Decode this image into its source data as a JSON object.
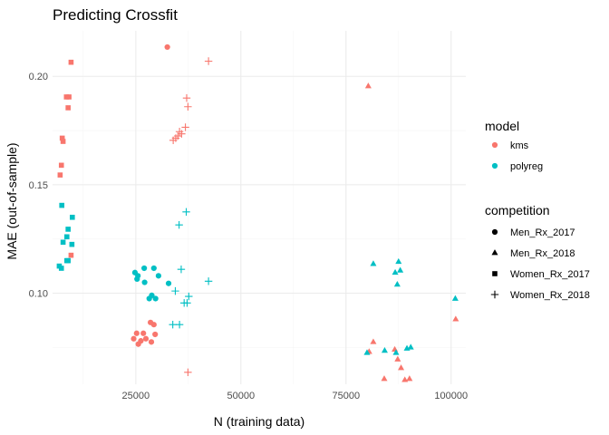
{
  "chart_data": {
    "type": "scatter",
    "title": "Predicting Crossfit",
    "xlabel": "N (training data)",
    "ylabel": "MAE (out-of-sample)",
    "xlim": [
      5200,
      103500
    ],
    "ylim": [
      0.058,
      0.221
    ],
    "x_ticks": [
      25000,
      50000,
      75000,
      100000
    ],
    "x_tick_labels": [
      "25000",
      "50000",
      "75000",
      "100000"
    ],
    "y_ticks": [
      0.1,
      0.15,
      0.2
    ],
    "y_tick_labels": [
      "0.10",
      "0.15",
      "0.20"
    ],
    "grid": true,
    "legend_position": "right",
    "color_legend": {
      "title": "model",
      "entries": [
        {
          "label": "kms",
          "color": "#f8766d"
        },
        {
          "label": "polyreg",
          "color": "#00bfc4"
        }
      ]
    },
    "shape_legend": {
      "title": "competition",
      "entries": [
        {
          "label": "Men_Rx_2017",
          "shape": "circle"
        },
        {
          "label": "Men_Rx_2018",
          "shape": "triangle"
        },
        {
          "label": "Women_Rx_2017",
          "shape": "square"
        },
        {
          "label": "Women_Rx_2018",
          "shape": "plus"
        }
      ]
    },
    "series": [
      {
        "model": "kms",
        "competition": "Men_Rx_2017",
        "points": [
          [
            32500,
            0.2135
          ],
          [
            25200,
            0.0815
          ],
          [
            24500,
            0.079
          ],
          [
            26800,
            0.0815
          ],
          [
            28500,
            0.0865
          ],
          [
            29300,
            0.0855
          ],
          [
            26200,
            0.078
          ],
          [
            25600,
            0.0765
          ],
          [
            27400,
            0.079
          ],
          [
            28700,
            0.0775
          ],
          [
            29600,
            0.081
          ]
        ]
      },
      {
        "model": "polyreg",
        "competition": "Men_Rx_2017",
        "points": [
          [
            24800,
            0.1095
          ],
          [
            25500,
            0.108
          ],
          [
            25300,
            0.1065
          ],
          [
            27000,
            0.1115
          ],
          [
            29300,
            0.1115
          ],
          [
            27100,
            0.105
          ],
          [
            30400,
            0.108
          ],
          [
            32800,
            0.1045
          ],
          [
            28200,
            0.0975
          ],
          [
            28800,
            0.099
          ],
          [
            29700,
            0.0975
          ]
        ]
      },
      {
        "model": "kms",
        "competition": "Men_Rx_2018",
        "points": [
          [
            80300,
            0.1955
          ],
          [
            81500,
            0.0775
          ],
          [
            80500,
            0.073
          ],
          [
            86600,
            0.074
          ],
          [
            87300,
            0.0695
          ],
          [
            88100,
            0.0655
          ],
          [
            84100,
            0.0605
          ],
          [
            89000,
            0.06
          ],
          [
            90100,
            0.0605
          ],
          [
            101100,
            0.088
          ]
        ]
      },
      {
        "model": "polyreg",
        "competition": "Men_Rx_2018",
        "points": [
          [
            81500,
            0.1135
          ],
          [
            87500,
            0.1145
          ],
          [
            86700,
            0.1095
          ],
          [
            87900,
            0.1105
          ],
          [
            87200,
            0.104
          ],
          [
            80000,
            0.0725
          ],
          [
            84200,
            0.0735
          ],
          [
            86900,
            0.0725
          ],
          [
            89500,
            0.0745
          ],
          [
            90400,
            0.075
          ],
          [
            101000,
            0.0975
          ]
        ]
      },
      {
        "model": "kms",
        "competition": "Women_Rx_2017",
        "points": [
          [
            9600,
            0.2065
          ],
          [
            8500,
            0.1905
          ],
          [
            9100,
            0.1905
          ],
          [
            8900,
            0.1855
          ],
          [
            7500,
            0.1715
          ],
          [
            7700,
            0.17
          ],
          [
            7300,
            0.159
          ],
          [
            7000,
            0.1545
          ],
          [
            9600,
            0.1175
          ]
        ]
      },
      {
        "model": "polyreg",
        "competition": "Women_Rx_2017",
        "points": [
          [
            7400,
            0.1405
          ],
          [
            9900,
            0.135
          ],
          [
            8900,
            0.1295
          ],
          [
            8600,
            0.126
          ],
          [
            7700,
            0.1235
          ],
          [
            9800,
            0.1225
          ],
          [
            8600,
            0.115
          ],
          [
            8900,
            0.115
          ],
          [
            6800,
            0.1125
          ],
          [
            7300,
            0.1115
          ]
        ]
      },
      {
        "model": "kms",
        "competition": "Women_Rx_2018",
        "points": [
          [
            42300,
            0.207
          ],
          [
            37100,
            0.19
          ],
          [
            37400,
            0.186
          ],
          [
            36800,
            0.1765
          ],
          [
            35400,
            0.1745
          ],
          [
            35900,
            0.1735
          ],
          [
            35000,
            0.1725
          ],
          [
            34500,
            0.1715
          ],
          [
            33900,
            0.1705
          ],
          [
            37400,
            0.0635
          ]
        ]
      },
      {
        "model": "polyreg",
        "competition": "Women_Rx_2018",
        "points": [
          [
            37000,
            0.1375
          ],
          [
            35300,
            0.1315
          ],
          [
            35800,
            0.111
          ],
          [
            42300,
            0.1055
          ],
          [
            34400,
            0.101
          ],
          [
            37600,
            0.0985
          ],
          [
            36500,
            0.0955
          ],
          [
            37200,
            0.0955
          ],
          [
            33800,
            0.0855
          ],
          [
            35400,
            0.0855
          ]
        ]
      }
    ]
  }
}
